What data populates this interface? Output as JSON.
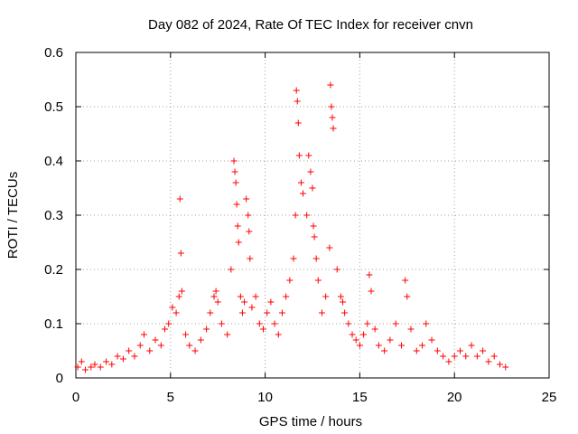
{
  "chart_data": {
    "type": "scatter",
    "title": "Day 082 of 2024, Rate Of TEC Index for receiver cnvn",
    "xlabel": "GPS time / hours",
    "ylabel": "ROTI / TECUs",
    "xlim": [
      0,
      25
    ],
    "ylim": [
      0,
      0.6
    ],
    "x_ticks": [
      "0",
      "5",
      "10",
      "15",
      "20",
      "25"
    ],
    "y_ticks": [
      "0",
      "0.1",
      "0.2",
      "0.3",
      "0.4",
      "0.5",
      "0.6"
    ],
    "grid": true,
    "legend": "none",
    "marker": "+",
    "color": "#ff0000",
    "series": [
      {
        "x": [
          0.1,
          0.3,
          0.5,
          0.8,
          1.0,
          1.3,
          1.6,
          1.9,
          2.2,
          2.5,
          2.8,
          3.1,
          3.4,
          3.6,
          3.9,
          4.2,
          4.5,
          4.7,
          4.9,
          5.1,
          5.3,
          5.45,
          5.5,
          5.55,
          5.6,
          5.8,
          6.0,
          6.3,
          6.6,
          6.9,
          7.1,
          7.3,
          7.4,
          7.5,
          7.7,
          8.0,
          8.2,
          8.35,
          8.4,
          8.45,
          8.5,
          8.55,
          8.6,
          8.7,
          8.8,
          8.9,
          9.0,
          9.1,
          9.15,
          9.2,
          9.3,
          9.5,
          9.7,
          9.9,
          10.1,
          10.3,
          10.5,
          10.7,
          10.9,
          11.1,
          11.3,
          11.5,
          11.6,
          11.65,
          11.7,
          11.75,
          11.8,
          11.9,
          12.0,
          12.2,
          12.3,
          12.4,
          12.5,
          12.55,
          12.6,
          12.7,
          12.8,
          13.0,
          13.2,
          13.4,
          13.45,
          13.5,
          13.55,
          13.6,
          13.8,
          14.0,
          14.1,
          14.2,
          14.4,
          14.6,
          14.8,
          15.0,
          15.2,
          15.4,
          15.5,
          15.6,
          15.8,
          16.0,
          16.3,
          16.6,
          16.9,
          17.2,
          17.4,
          17.5,
          17.7,
          18.0,
          18.3,
          18.5,
          18.8,
          19.1,
          19.4,
          19.7,
          20.0,
          20.3,
          20.6,
          20.9,
          21.2,
          21.5,
          21.8,
          22.1,
          22.4,
          22.7
        ],
        "y": [
          0.02,
          0.03,
          0.015,
          0.02,
          0.025,
          0.02,
          0.03,
          0.025,
          0.04,
          0.035,
          0.05,
          0.04,
          0.06,
          0.08,
          0.05,
          0.07,
          0.06,
          0.09,
          0.1,
          0.13,
          0.12,
          0.15,
          0.33,
          0.23,
          0.16,
          0.08,
          0.06,
          0.05,
          0.07,
          0.09,
          0.12,
          0.15,
          0.16,
          0.14,
          0.1,
          0.08,
          0.2,
          0.4,
          0.38,
          0.36,
          0.32,
          0.28,
          0.25,
          0.15,
          0.12,
          0.14,
          0.33,
          0.3,
          0.27,
          0.22,
          0.13,
          0.15,
          0.1,
          0.09,
          0.12,
          0.14,
          0.1,
          0.08,
          0.12,
          0.15,
          0.18,
          0.22,
          0.3,
          0.53,
          0.51,
          0.47,
          0.41,
          0.36,
          0.34,
          0.3,
          0.41,
          0.38,
          0.35,
          0.28,
          0.26,
          0.22,
          0.18,
          0.12,
          0.15,
          0.24,
          0.54,
          0.5,
          0.48,
          0.46,
          0.2,
          0.15,
          0.14,
          0.12,
          0.1,
          0.08,
          0.07,
          0.06,
          0.08,
          0.1,
          0.19,
          0.16,
          0.09,
          0.06,
          0.05,
          0.07,
          0.1,
          0.06,
          0.18,
          0.15,
          0.09,
          0.05,
          0.06,
          0.1,
          0.07,
          0.05,
          0.04,
          0.03,
          0.04,
          0.05,
          0.04,
          0.06,
          0.04,
          0.05,
          0.03,
          0.04,
          0.025,
          0.02
        ]
      }
    ]
  }
}
